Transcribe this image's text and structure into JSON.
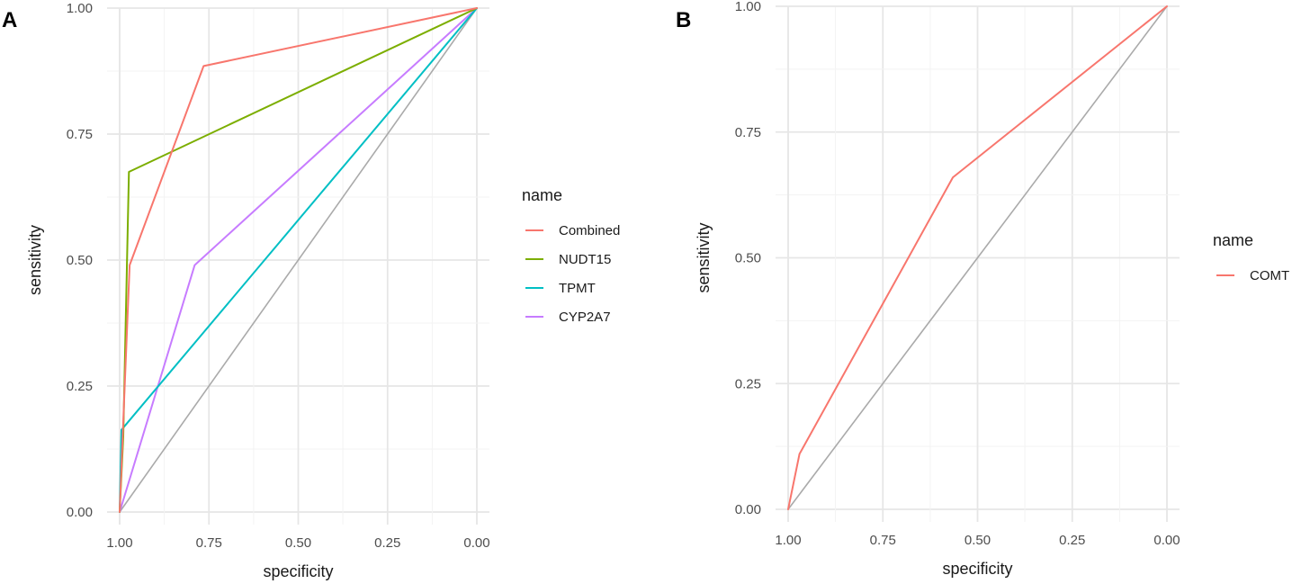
{
  "figure": {
    "panels": [
      "A",
      "B"
    ]
  },
  "chart_data": [
    {
      "panel": "A",
      "type": "line",
      "title": "",
      "xlabel": "specificity",
      "ylabel": "sensitivity",
      "xlim": [
        1.0,
        0.0
      ],
      "ylim": [
        0.0,
        1.0
      ],
      "x_reversed": true,
      "xticks": [
        "1.00",
        "0.75",
        "0.50",
        "0.25",
        "0.00"
      ],
      "yticks": [
        "0.00",
        "0.25",
        "0.50",
        "0.75",
        "1.00"
      ],
      "legend_title": "name",
      "legend_position": "right",
      "reference_line": {
        "points": [
          [
            1.0,
            0.0
          ],
          [
            0.0,
            1.0
          ]
        ],
        "color": "#aaaaaa"
      },
      "series": [
        {
          "name": "Combined",
          "color": "#F8766D",
          "points": [
            [
              1.0,
              0.0
            ],
            [
              0.99,
              0.18
            ],
            [
              0.972,
              0.49
            ],
            [
              0.765,
              0.885
            ],
            [
              0.0,
              1.0
            ]
          ]
        },
        {
          "name": "NUDT15",
          "color": "#7CAE00",
          "points": [
            [
              1.0,
              0.0
            ],
            [
              0.99,
              0.15
            ],
            [
              0.974,
              0.675
            ],
            [
              0.0,
              1.0
            ]
          ]
        },
        {
          "name": "TPMT",
          "color": "#00BFC4",
          "points": [
            [
              1.0,
              0.0
            ],
            [
              0.995,
              0.163
            ],
            [
              0.0,
              1.0
            ]
          ]
        },
        {
          "name": "CYP2A7",
          "color": "#C77CFF",
          "points": [
            [
              1.0,
              0.0
            ],
            [
              0.79,
              0.49
            ],
            [
              0.0,
              1.0
            ]
          ]
        }
      ]
    },
    {
      "panel": "B",
      "type": "line",
      "title": "",
      "xlabel": "specificity",
      "ylabel": "sensitivity",
      "xlim": [
        1.0,
        0.0
      ],
      "ylim": [
        0.0,
        1.0
      ],
      "x_reversed": true,
      "xticks": [
        "1.00",
        "0.75",
        "0.50",
        "0.25",
        "0.00"
      ],
      "yticks": [
        "0.00",
        "0.25",
        "0.50",
        "0.75",
        "1.00"
      ],
      "legend_title": "name",
      "legend_position": "right",
      "reference_line": {
        "points": [
          [
            1.0,
            0.0
          ],
          [
            0.0,
            1.0
          ]
        ],
        "color": "#aaaaaa"
      },
      "series": [
        {
          "name": "COMT",
          "color": "#F8766D",
          "points": [
            [
              1.0,
              0.0
            ],
            [
              0.97,
              0.11
            ],
            [
              0.565,
              0.66
            ],
            [
              0.0,
              1.0
            ]
          ]
        }
      ]
    }
  ]
}
